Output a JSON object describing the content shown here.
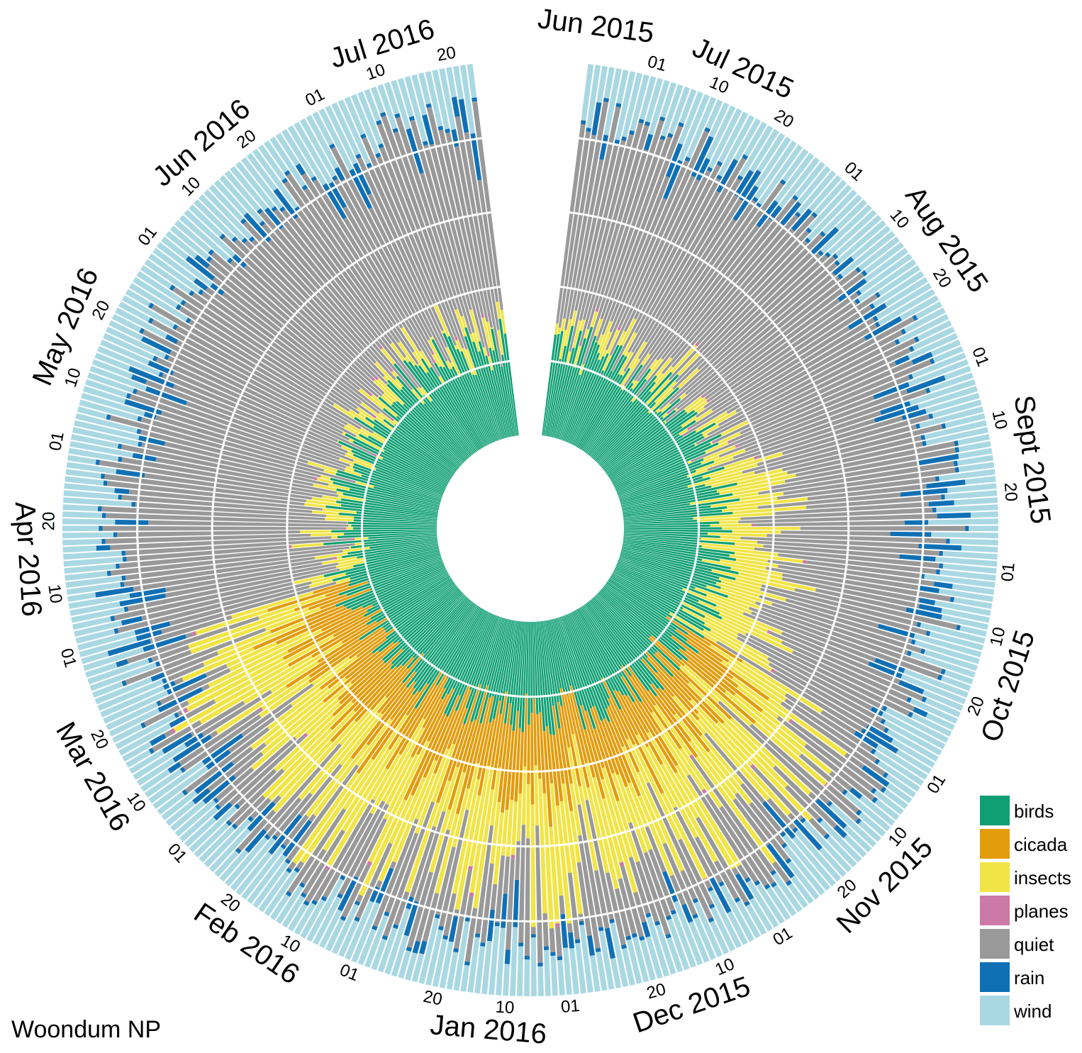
{
  "chart_data": {
    "type": "radial-stacked-bar",
    "site": "Woondum NP",
    "categories_order_inner_to_outer": [
      "birds",
      "cicada",
      "insects",
      "planes",
      "quiet",
      "rain",
      "wind"
    ],
    "legend": [
      {
        "label": "birds",
        "color": "#0f9f73"
      },
      {
        "label": "cicada",
        "color": "#e39c0c"
      },
      {
        "label": "insects",
        "color": "#f1e445"
      },
      {
        "label": "planes",
        "color": "#cc79a7"
      },
      {
        "label": "quiet",
        "color": "#999999"
      },
      {
        "label": "rain",
        "color": "#1070b5"
      },
      {
        "label": "wind",
        "color": "#a9d8e3"
      }
    ],
    "start_date": "2015-06-22",
    "end_date": "2016-07-23",
    "days": 398,
    "month_labels": [
      {
        "text": "Jun 2015",
        "date": "2015-06-22"
      },
      {
        "text": "Jul 2015",
        "date": "2015-07-12"
      },
      {
        "text": "Aug 2015",
        "date": "2015-08-16"
      },
      {
        "text": "Sept 2015",
        "date": "2015-09-16"
      },
      {
        "text": "Oct 2015",
        "date": "2015-10-16"
      },
      {
        "text": "Nov 2015",
        "date": "2015-11-16"
      },
      {
        "text": "Dec 2015",
        "date": "2015-12-16"
      },
      {
        "text": "Jan 2016",
        "date": "2016-01-12"
      },
      {
        "text": "Feb 2016",
        "date": "2016-02-15"
      },
      {
        "text": "Mar 2016",
        "date": "2016-03-16"
      },
      {
        "text": "Apr 2016",
        "date": "2016-04-15"
      },
      {
        "text": "May 2016",
        "date": "2016-05-16"
      },
      {
        "text": "Jun 2016",
        "date": "2016-06-15"
      },
      {
        "text": "Jul 2016",
        "date": "2016-07-12"
      }
    ],
    "day_ticks": [
      {
        "text": "01",
        "date": "2015-07-01"
      },
      {
        "text": "10",
        "date": "2015-07-10"
      },
      {
        "text": "20",
        "date": "2015-07-20"
      },
      {
        "text": "01",
        "date": "2015-08-01"
      },
      {
        "text": "10",
        "date": "2015-08-10"
      },
      {
        "text": "20",
        "date": "2015-08-20"
      },
      {
        "text": "01",
        "date": "2015-09-01"
      },
      {
        "text": "10",
        "date": "2015-09-10"
      },
      {
        "text": "20",
        "date": "2015-09-20"
      },
      {
        "text": "01",
        "date": "2015-10-01"
      },
      {
        "text": "10",
        "date": "2015-10-10"
      },
      {
        "text": "20",
        "date": "2015-10-20"
      },
      {
        "text": "01",
        "date": "2015-11-01"
      },
      {
        "text": "10",
        "date": "2015-11-10"
      },
      {
        "text": "20",
        "date": "2015-11-20"
      },
      {
        "text": "01",
        "date": "2015-12-01"
      },
      {
        "text": "10",
        "date": "2015-12-10"
      },
      {
        "text": "20",
        "date": "2015-12-20"
      },
      {
        "text": "01",
        "date": "2016-01-01"
      },
      {
        "text": "10",
        "date": "2016-01-10"
      },
      {
        "text": "20",
        "date": "2016-01-20"
      },
      {
        "text": "01",
        "date": "2016-02-01"
      },
      {
        "text": "10",
        "date": "2016-02-10"
      },
      {
        "text": "20",
        "date": "2016-02-20"
      },
      {
        "text": "01",
        "date": "2016-03-01"
      },
      {
        "text": "10",
        "date": "2016-03-10"
      },
      {
        "text": "20",
        "date": "2016-03-20"
      },
      {
        "text": "01",
        "date": "2016-04-01"
      },
      {
        "text": "10",
        "date": "2016-04-10"
      },
      {
        "text": "20",
        "date": "2016-04-20"
      },
      {
        "text": "01",
        "date": "2016-05-01"
      },
      {
        "text": "10",
        "date": "2016-05-10"
      },
      {
        "text": "20",
        "date": "2016-05-20"
      },
      {
        "text": "01",
        "date": "2016-06-01"
      },
      {
        "text": "10",
        "date": "2016-06-10"
      },
      {
        "text": "20",
        "date": "2016-06-20"
      },
      {
        "text": "01",
        "date": "2016-07-01"
      },
      {
        "text": "10",
        "date": "2016-07-10"
      },
      {
        "text": "20",
        "date": "2016-07-20"
      }
    ],
    "gridlines": "white concentric circles",
    "data_note": "Each day is one radial bar stacked in the order birds, cicada, insects, planes, quiet, rain, wind; the values given are seasonal estimates of the fraction of the day in each class."
  }
}
